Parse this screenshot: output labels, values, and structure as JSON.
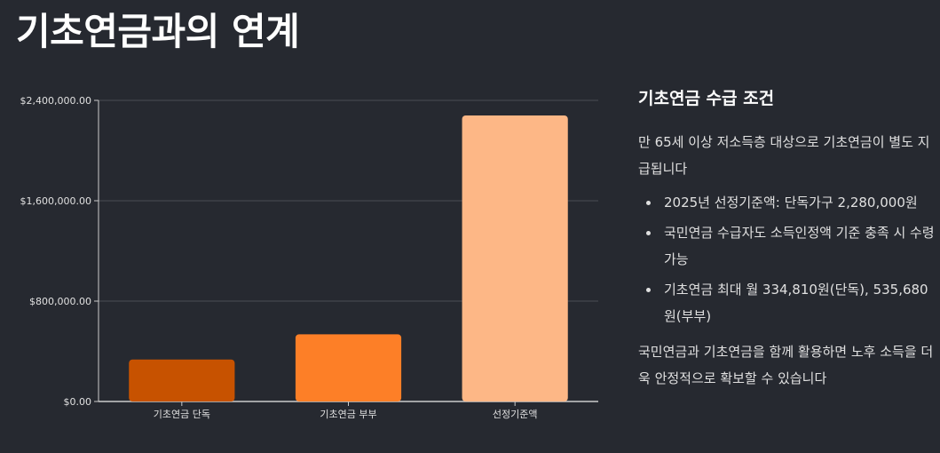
{
  "page": {
    "title": "기초연금과의 연계"
  },
  "info": {
    "heading": "기초연금 수급 조건",
    "intro": "만 65세 이상 저소득층 대상으로 기초연금이 별도 지급됩니다",
    "bullets": [
      "2025년 선정기준액: 단독가구 2,280,000원",
      "국민연금 수급자도 소득인정액 기준 충족 시 수령 가능",
      "기초연금 최대 월 334,810원(단독), 535,680원(부부)"
    ],
    "outro": "국민연금과 기초연금을 함께 활용하면 노후 소득을 더욱 안정적으로 확보할 수 있습니다"
  },
  "colors": {
    "background": "#262930",
    "bar_single": "#c75200",
    "bar_couple": "#fd7f27",
    "bar_threshold": "#fdb786",
    "grid": "#4a4d55",
    "axis": "#cccccc",
    "tick_text": "#e0e0e0"
  },
  "chart_data": {
    "type": "bar",
    "categories": [
      "기초연금 단독",
      "기초연금 부부",
      "선정기준액"
    ],
    "values": [
      334810,
      535680,
      2280000
    ],
    "bar_colors": [
      "#c75200",
      "#fd7f27",
      "#fdb786"
    ],
    "title": "",
    "xlabel": "",
    "ylabel": "",
    "ylim": [
      0,
      2400000
    ],
    "yticks": [
      0,
      800000,
      1600000,
      2400000
    ],
    "ytick_labels": [
      "$0.00",
      "$800,000.00",
      "$1,600,000.00",
      "$2,400,000.00"
    ],
    "grid": true,
    "legend": "none"
  }
}
